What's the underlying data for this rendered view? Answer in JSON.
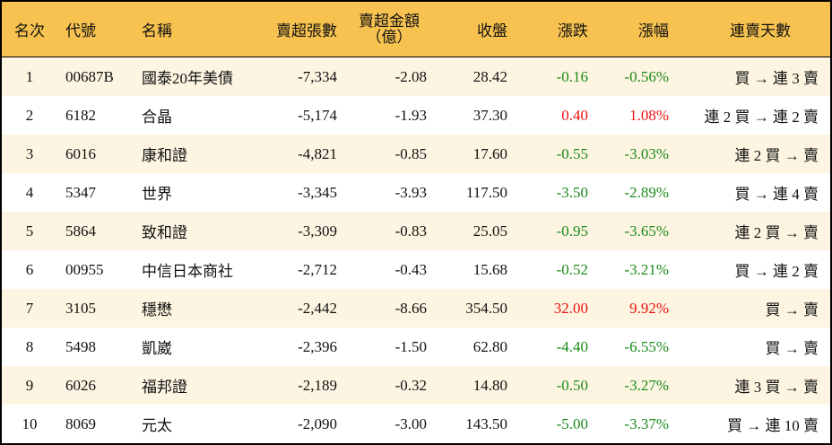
{
  "headers": {
    "rank": "名次",
    "code": "代號",
    "name": "名稱",
    "net_sell_lots": "賣超張數",
    "net_sell_amount": "賣超金額",
    "net_sell_amount_unit": "（億）",
    "close": "收盤",
    "change": "漲跌",
    "change_pct": "漲幅",
    "streak": "連賣天數"
  },
  "colors": {
    "header_bg": "#F7C24F",
    "stripe_bg": "#FDF5E1",
    "up": "#ee1111",
    "down": "#1a8a1a"
  },
  "rows": [
    {
      "rank": "1",
      "code": "00687B",
      "name": "國泰20年美債",
      "lots": "-7,334",
      "amount": "-2.08",
      "close": "28.42",
      "change": "-0.16",
      "pct": "-0.56%",
      "dir": "down",
      "streak": "買 → 連 3 賣"
    },
    {
      "rank": "2",
      "code": "6182",
      "name": "合晶",
      "lots": "-5,174",
      "amount": "-1.93",
      "close": "37.30",
      "change": "0.40",
      "pct": "1.08%",
      "dir": "up",
      "streak": "連 2 買 → 連 2 賣"
    },
    {
      "rank": "3",
      "code": "6016",
      "name": "康和證",
      "lots": "-4,821",
      "amount": "-0.85",
      "close": "17.60",
      "change": "-0.55",
      "pct": "-3.03%",
      "dir": "down",
      "streak": "連 2 買 → 賣"
    },
    {
      "rank": "4",
      "code": "5347",
      "name": "世界",
      "lots": "-3,345",
      "amount": "-3.93",
      "close": "117.50",
      "change": "-3.50",
      "pct": "-2.89%",
      "dir": "down",
      "streak": "買 → 連 4 賣"
    },
    {
      "rank": "5",
      "code": "5864",
      "name": "致和證",
      "lots": "-3,309",
      "amount": "-0.83",
      "close": "25.05",
      "change": "-0.95",
      "pct": "-3.65%",
      "dir": "down",
      "streak": "連 2 買 → 賣"
    },
    {
      "rank": "6",
      "code": "00955",
      "name": "中信日本商社",
      "lots": "-2,712",
      "amount": "-0.43",
      "close": "15.68",
      "change": "-0.52",
      "pct": "-3.21%",
      "dir": "down",
      "streak": "買 → 連 2 賣"
    },
    {
      "rank": "7",
      "code": "3105",
      "name": "穩懋",
      "lots": "-2,442",
      "amount": "-8.66",
      "close": "354.50",
      "change": "32.00",
      "pct": "9.92%",
      "dir": "up",
      "streak": "買 → 賣"
    },
    {
      "rank": "8",
      "code": "5498",
      "name": "凱崴",
      "lots": "-2,396",
      "amount": "-1.50",
      "close": "62.80",
      "change": "-4.40",
      "pct": "-6.55%",
      "dir": "down",
      "streak": "買 → 賣"
    },
    {
      "rank": "9",
      "code": "6026",
      "name": "福邦證",
      "lots": "-2,189",
      "amount": "-0.32",
      "close": "14.80",
      "change": "-0.50",
      "pct": "-3.27%",
      "dir": "down",
      "streak": "連 3 買 → 賣"
    },
    {
      "rank": "10",
      "code": "8069",
      "name": "元太",
      "lots": "-2,090",
      "amount": "-3.00",
      "close": "143.50",
      "change": "-5.00",
      "pct": "-3.37%",
      "dir": "down",
      "streak": "買 → 連 10 賣"
    }
  ]
}
